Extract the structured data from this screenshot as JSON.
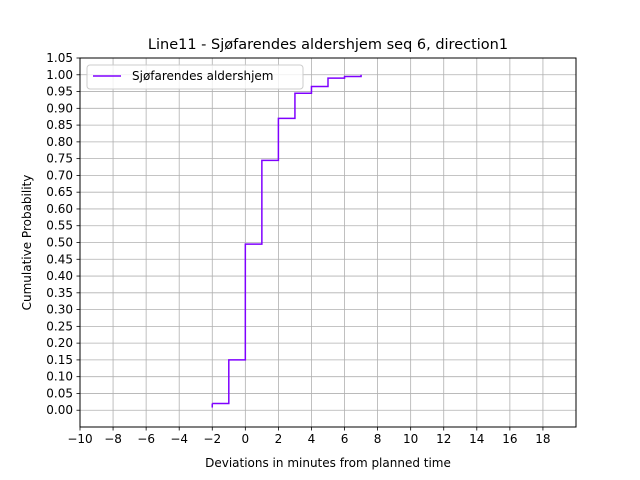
{
  "chart_data": {
    "type": "line",
    "title": "Line11 - Sjøfarendes aldershjem seq 6, direction1",
    "xlabel": "Deviations in minutes from planned time",
    "ylabel": "Cumulative Probability",
    "xlim": [
      -10,
      20
    ],
    "ylim": [
      -0.05,
      1.05
    ],
    "xticks": [
      -10,
      -8,
      -6,
      -4,
      -2,
      0,
      2,
      4,
      6,
      8,
      10,
      12,
      14,
      16,
      18
    ],
    "yticks": [
      0.0,
      0.05,
      0.1,
      0.15,
      0.2,
      0.25,
      0.3,
      0.35,
      0.4,
      0.45,
      0.5,
      0.55,
      0.6,
      0.65,
      0.7,
      0.75,
      0.8,
      0.85,
      0.9,
      0.95,
      1.0,
      1.05
    ],
    "grid": true,
    "legend_position": "top-left",
    "step": "post",
    "series": [
      {
        "name": "Sjøfarendes aldershjem",
        "color": "#7f00ff",
        "x": [
          -2,
          -1,
          0,
          1,
          2,
          3,
          4,
          5,
          6,
          7
        ],
        "y": [
          0.02,
          0.15,
          0.495,
          0.745,
          0.87,
          0.945,
          0.965,
          0.99,
          0.995,
          1.0
        ]
      }
    ]
  }
}
